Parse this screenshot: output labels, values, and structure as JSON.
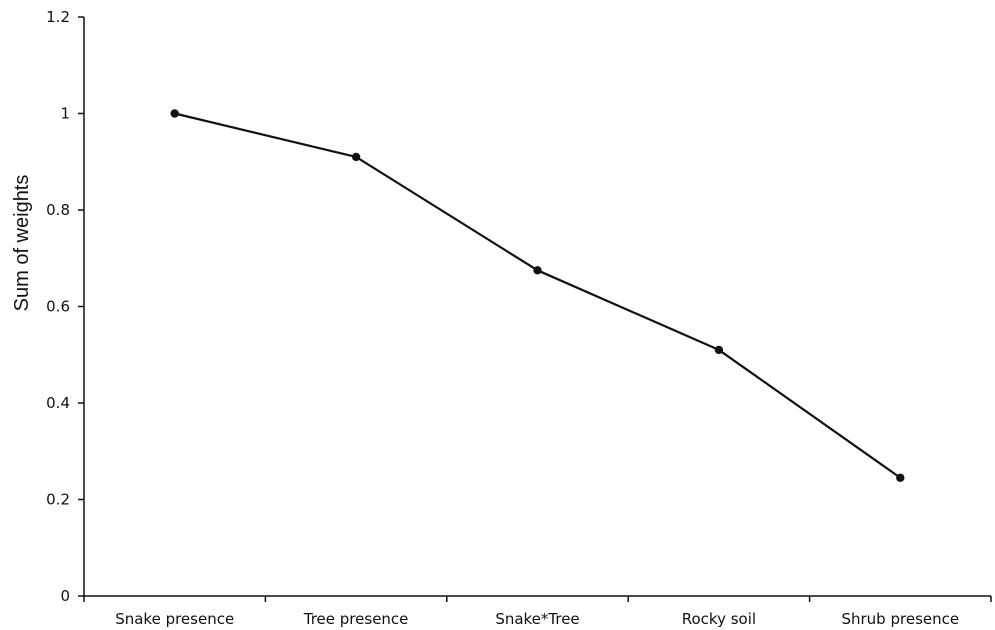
{
  "chart_data": {
    "type": "line",
    "title": "",
    "xlabel": "",
    "ylabel": "Sum of weights",
    "categories": [
      "Snake presence",
      "Tree presence",
      "Snake*Tree",
      "Rocky soil",
      "Shrub presence"
    ],
    "series": [
      {
        "values": [
          1.0,
          0.91,
          0.675,
          0.51,
          0.245
        ]
      }
    ],
    "ylim": [
      0,
      1.2
    ],
    "yticks": [
      "0",
      "0.2",
      "0.4",
      "0.6",
      "0.8",
      "1",
      "1.2"
    ],
    "grid": false,
    "legend": "none",
    "line_color": "#111111",
    "axis_color": "#111111"
  }
}
